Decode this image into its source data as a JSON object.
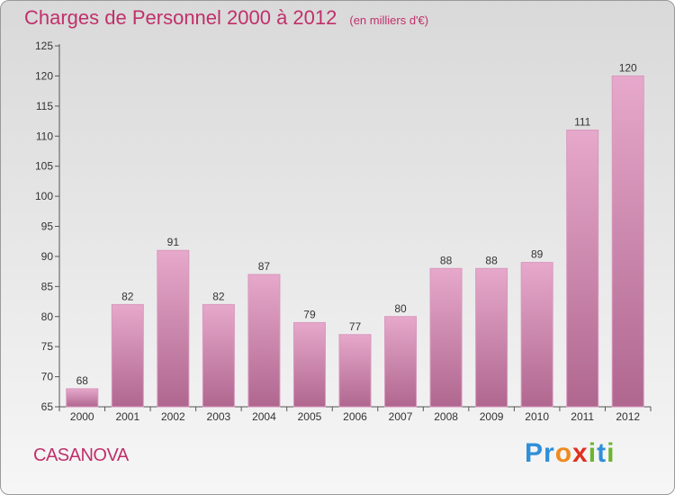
{
  "title": "Charges de Personnel 2000 à 2012",
  "unit": "(en milliers d'€)",
  "commune": "CASANOVA",
  "logo": {
    "text": "Proxiti",
    "letters": [
      {
        "ch": "P",
        "color": "#2f8fd8"
      },
      {
        "ch": "r",
        "color": "#2f8fd8"
      },
      {
        "ch": "o",
        "color": "#f08a1e"
      },
      {
        "ch": "x",
        "color": "#e0301e"
      },
      {
        "ch": "i",
        "color": "#6bb52d"
      },
      {
        "ch": "t",
        "color": "#2f8fd8"
      },
      {
        "ch": "i",
        "color": "#6bb52d"
      }
    ]
  },
  "colors": {
    "title": "#c0306a",
    "bar_light": "#e6a8cb",
    "bar_dark": "#b0678f",
    "bar_edge": "#d998bd"
  },
  "chart_data": {
    "type": "bar",
    "categories": [
      "2000",
      "2001",
      "2002",
      "2003",
      "2004",
      "2005",
      "2006",
      "2007",
      "2008",
      "2009",
      "2010",
      "2011",
      "2012"
    ],
    "values": [
      68,
      82,
      91,
      82,
      87,
      79,
      77,
      80,
      88,
      88,
      89,
      111,
      120
    ],
    "ylim": [
      65,
      125
    ],
    "yticks": [
      65,
      70,
      75,
      80,
      85,
      90,
      95,
      100,
      105,
      110,
      115,
      120,
      125
    ],
    "grid": false
  }
}
